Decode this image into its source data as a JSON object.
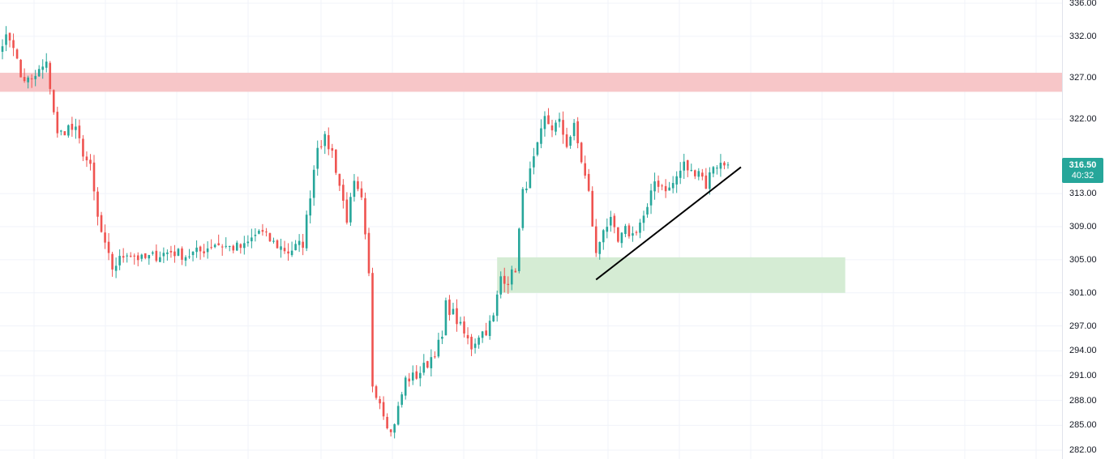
{
  "chart_data": {
    "type": "candlestick",
    "title": "",
    "price_axis_ticks": [
      "336.00",
      "332.00",
      "327.00",
      "322.00",
      "313.00",
      "309.00",
      "305.00",
      "301.00",
      "297.00",
      "294.00",
      "291.00",
      "288.00",
      "285.00",
      "282.00"
    ],
    "ylim": [
      282,
      336
    ],
    "grid": true,
    "last_price": {
      "label": "316.50",
      "countdown": "40:32",
      "value": 316.5
    },
    "colors": {
      "up": "#26a69a",
      "down": "#ef5350",
      "resistance_zone": "#f7c6c8",
      "support_zone": "#d5ecd4",
      "trendline": "#000000",
      "grid": "#f0f3fa",
      "badge": "#26a69a"
    },
    "zones": [
      {
        "name": "resistance",
        "low": 325.3,
        "high": 327.6,
        "from_bar": 0,
        "to_bar": "end"
      },
      {
        "name": "support",
        "low": 301.0,
        "high": 305.3,
        "from_bar": 135,
        "to_bar": 230
      }
    ],
    "trendline": {
      "from": {
        "bar": 162,
        "price": 302.6
      },
      "to": {
        "bar": 198,
        "price": 315.9
      }
    },
    "anchors": [
      [
        0,
        331.5
      ],
      [
        2,
        331.8
      ],
      [
        3,
        331.0
      ],
      [
        5,
        327.0
      ],
      [
        8,
        326.5
      ],
      [
        10,
        327.8
      ],
      [
        12,
        328.5
      ],
      [
        13,
        326.0
      ],
      [
        15,
        320.0
      ],
      [
        18,
        321.0
      ],
      [
        20,
        320.5
      ],
      [
        22,
        318.0
      ],
      [
        24,
        316.0
      ],
      [
        26,
        310.0
      ],
      [
        28,
        306.5
      ],
      [
        30,
        304.0
      ],
      [
        34,
        306.0
      ],
      [
        38,
        305.0
      ],
      [
        42,
        305.5
      ],
      [
        46,
        306.0
      ],
      [
        50,
        305.5
      ],
      [
        54,
        306.0
      ],
      [
        58,
        307.0
      ],
      [
        62,
        306.5
      ],
      [
        66,
        306.5
      ],
      [
        70,
        308.5
      ],
      [
        74,
        307.0
      ],
      [
        78,
        306.0
      ],
      [
        82,
        307.0
      ],
      [
        84,
        313.0
      ],
      [
        86,
        319.0
      ],
      [
        88,
        319.5
      ],
      [
        90,
        318.0
      ],
      [
        92,
        314.0
      ],
      [
        94,
        310.0
      ],
      [
        96,
        314.0
      ],
      [
        98,
        312.0
      ],
      [
        100,
        303.0
      ],
      [
        101,
        290.0
      ],
      [
        103,
        288.0
      ],
      [
        106,
        284.0
      ],
      [
        108,
        287.0
      ],
      [
        110,
        290.5
      ],
      [
        113,
        291.0
      ],
      [
        116,
        292.5
      ],
      [
        118,
        294.0
      ],
      [
        120,
        295.5
      ],
      [
        121,
        299.5
      ],
      [
        123,
        298.5
      ],
      [
        126,
        296.0
      ],
      [
        128,
        294.5
      ],
      [
        130,
        296.0
      ],
      [
        132,
        296.5
      ],
      [
        134,
        298.0
      ],
      [
        136,
        303.0
      ],
      [
        138,
        302.5
      ],
      [
        140,
        304.0
      ],
      [
        142,
        313.0
      ],
      [
        144,
        315.5
      ],
      [
        146,
        318.5
      ],
      [
        148,
        322.0
      ],
      [
        150,
        321.0
      ],
      [
        152,
        321.5
      ],
      [
        154,
        319.0
      ],
      [
        156,
        321.0
      ],
      [
        158,
        317.0
      ],
      [
        160,
        313.0
      ],
      [
        162,
        305.5
      ],
      [
        164,
        309.0
      ],
      [
        166,
        309.5
      ],
      [
        168,
        307.0
      ],
      [
        170,
        308.5
      ],
      [
        172,
        308.0
      ],
      [
        174,
        309.5
      ],
      [
        176,
        311.0
      ],
      [
        178,
        314.5
      ],
      [
        180,
        314.0
      ],
      [
        182,
        313.5
      ],
      [
        184,
        315.0
      ],
      [
        186,
        316.5
      ],
      [
        188,
        315.5
      ],
      [
        190,
        316.0
      ],
      [
        192,
        314.0
      ],
      [
        194,
        316.5
      ],
      [
        196,
        316.5
      ],
      [
        198,
        316.5
      ]
    ]
  }
}
